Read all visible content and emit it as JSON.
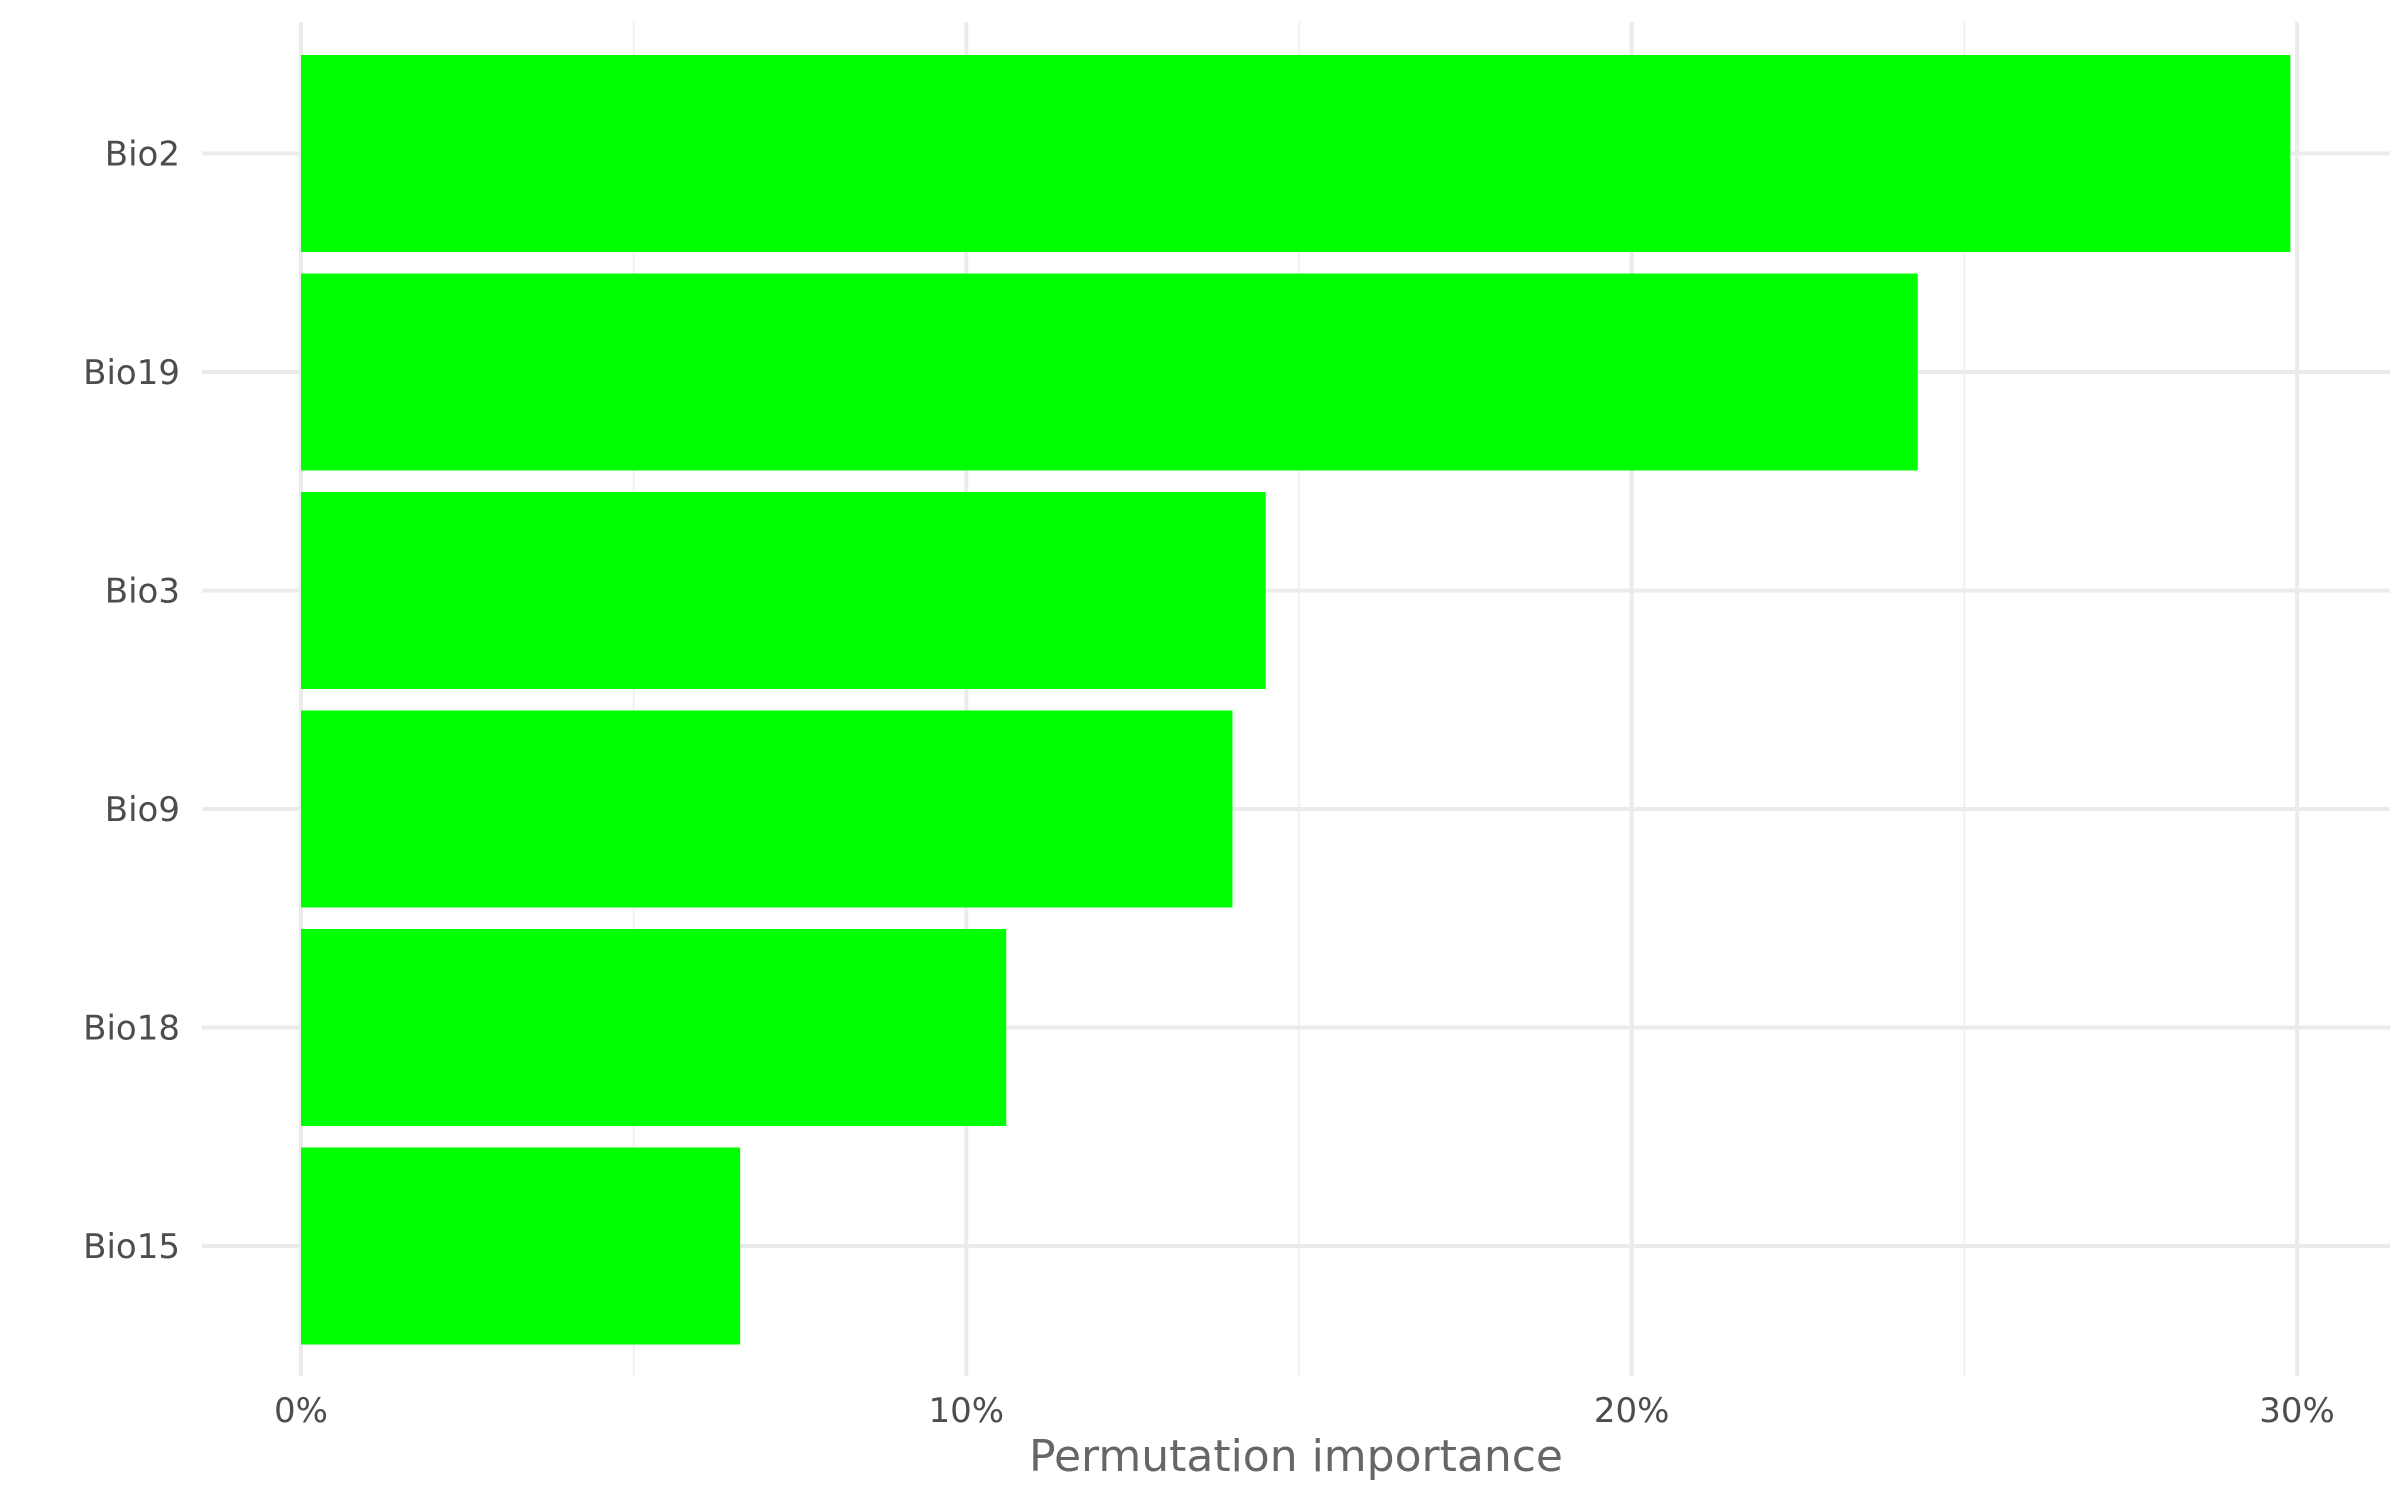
{
  "chart_data": {
    "type": "bar",
    "orientation": "horizontal",
    "title": "",
    "xlabel": "Permutation importance",
    "ylabel": "",
    "categories": [
      "Bio2",
      "Bio19",
      "Bio3",
      "Bio9",
      "Bio18",
      "Bio15"
    ],
    "values": [
      29.9,
      24.3,
      14.5,
      14.0,
      10.6,
      6.6
    ],
    "unit": "%",
    "xlim": [
      0,
      30
    ],
    "x_ticks": [
      0,
      10,
      20,
      30
    ],
    "x_tick_labels": [
      "0%",
      "10%",
      "20%",
      "30%"
    ],
    "grid": true,
    "legend": "none",
    "colors": {
      "bar": "#00ff00",
      "grid_major": "#ebebeb",
      "grid_minor": "#f2f2f2",
      "background": "#ffffff"
    }
  }
}
